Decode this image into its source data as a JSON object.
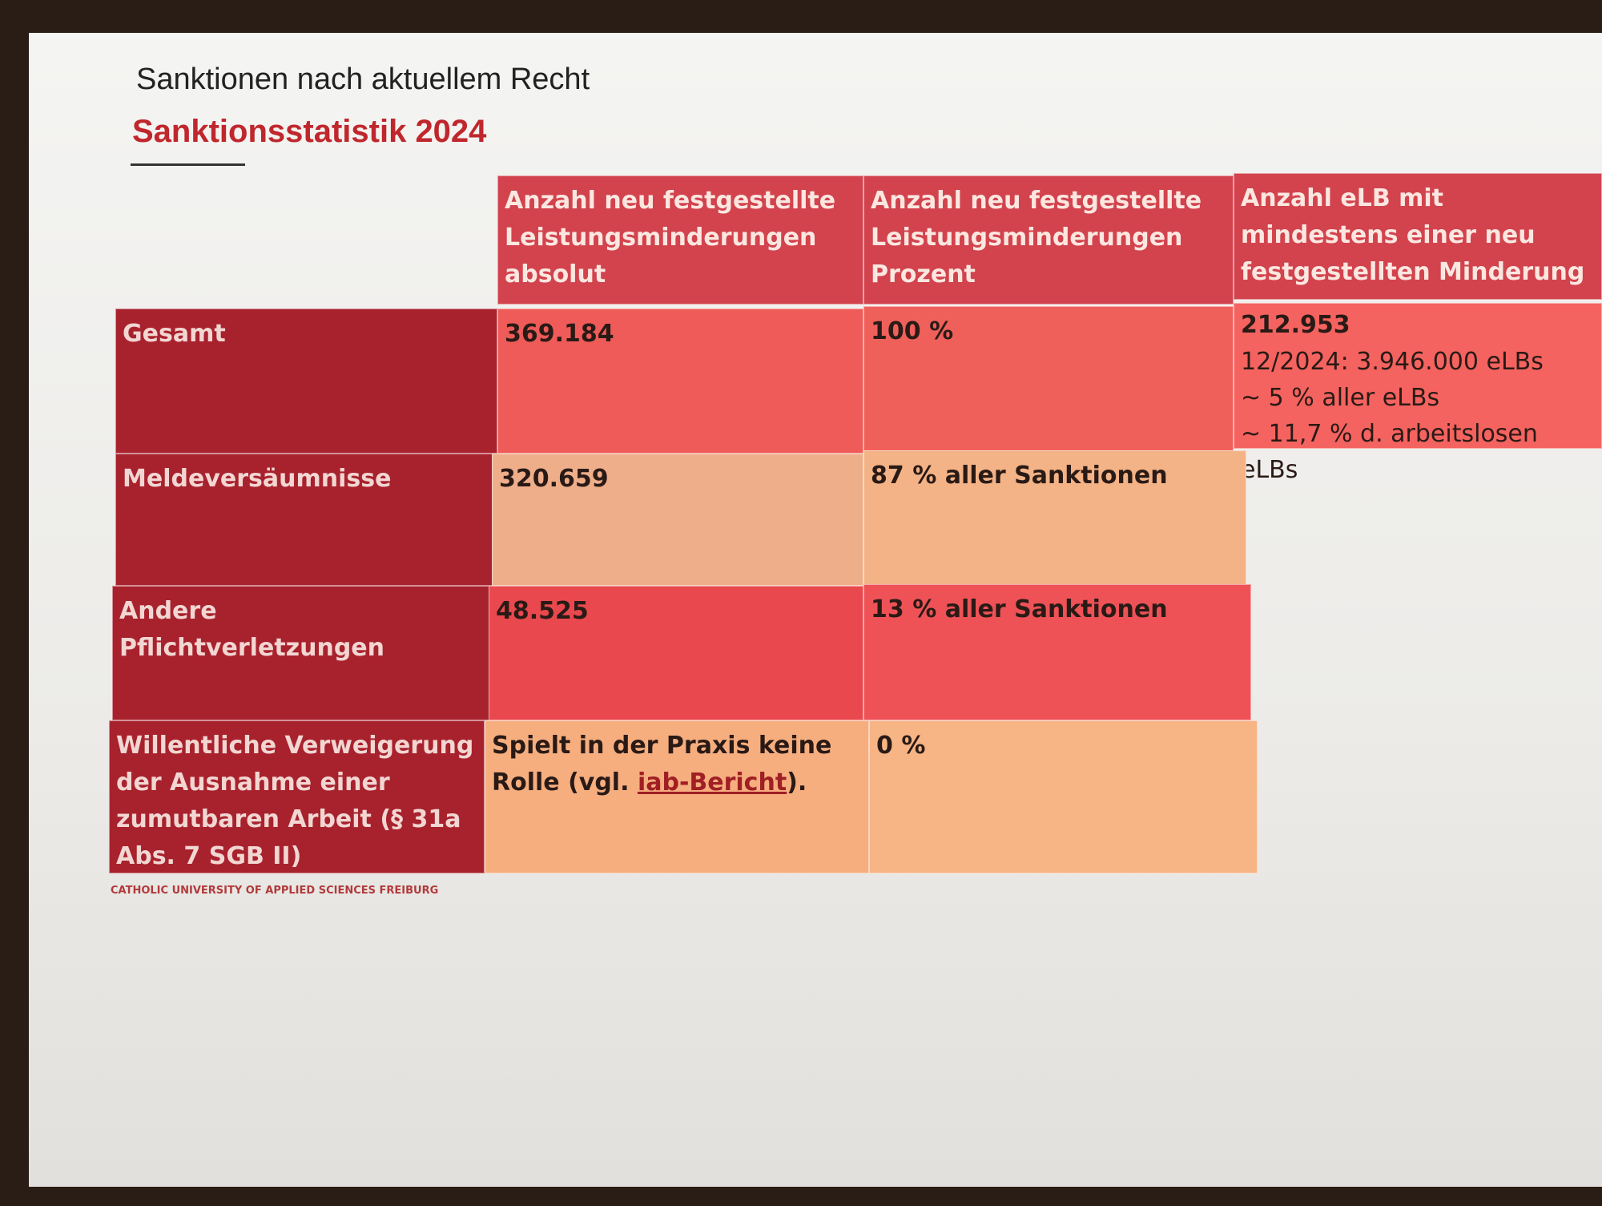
{
  "header": {
    "title": "Sanktionen nach aktuellem Recht",
    "subtitle": "Sanktionsstatistik 2024"
  },
  "table": {
    "columns": [
      "Anzahl neu festgestellte Leistungsminderungen absolut",
      "Anzahl neu festgestellte Leistungsminderungen Prozent",
      "Anzahl eLB mit mindestens einer neu festgestellten Minderung"
    ],
    "rows": [
      {
        "label": "Gesamt",
        "cells": [
          "369.184",
          "100 %",
          [
            "212.953",
            "12/2024: 3.946.000 eLBs",
            "~ 5 % aller eLBs",
            "~ 11,7 % d. arbeitslosen eLBs"
          ]
        ]
      },
      {
        "label": "Meldeversäumnisse",
        "cells": [
          "320.659",
          "87 % aller Sanktionen"
        ]
      },
      {
        "label": "Andere Pflichtverletzungen",
        "cells": [
          "48.525",
          "13 % aller Sanktionen"
        ]
      },
      {
        "label": "Willentliche Verweigerung der Ausnahme einer zumutbaren Arbeit (§ 31a Abs. 7 SGB II)",
        "cells": [
          {
            "before": "Spielt in der Praxis keine Rolle (vgl. ",
            "link": "iab-Bericht",
            "after": ")."
          },
          "0 %"
        ]
      }
    ]
  },
  "footer": "CATHOLIC UNIVERSITY OF APPLIED SCIENCES FREIBURG"
}
